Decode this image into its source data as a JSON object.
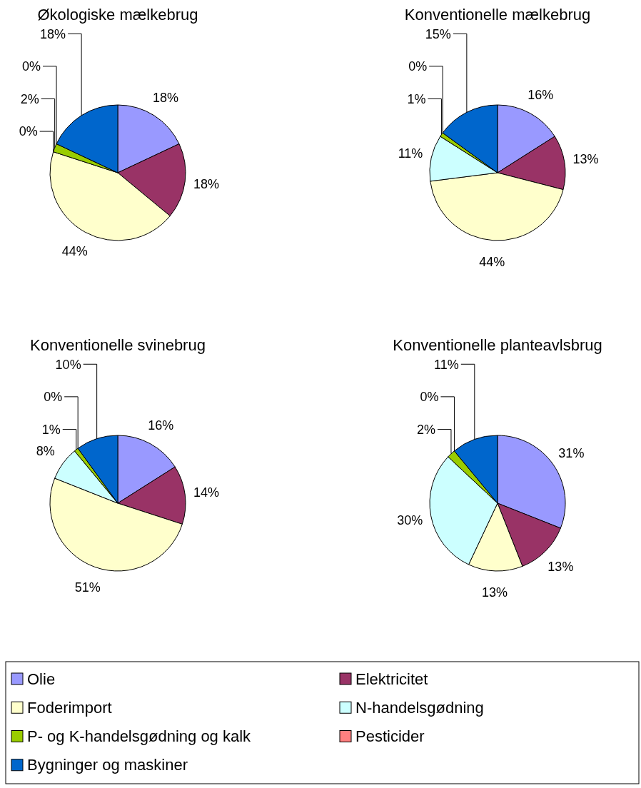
{
  "chart_data": [
    {
      "type": "pie",
      "title": "Økologiske mælkebrug",
      "categories": [
        "Olie",
        "Elektricitet",
        "Foderimport",
        "N-handelsgødning",
        "P- og K-handelsgødning og kalk",
        "Pesticider",
        "Bygninger og maskiner"
      ],
      "values": [
        18,
        18,
        44,
        0,
        2,
        0,
        18
      ],
      "value_labels": [
        "18%",
        "18%",
        "44%",
        "0%",
        "2%",
        "0%",
        "18%"
      ],
      "colors": [
        "#9999ff",
        "#993366",
        "#ffffcc",
        "#ccffff",
        "#99cc00",
        "#ff8080",
        "#0066cc"
      ],
      "legend": "bottom"
    },
    {
      "type": "pie",
      "title": "Konventionelle mælkebrug",
      "categories": [
        null,
        null,
        null,
        null,
        null,
        null,
        null
      ],
      "values": [
        16,
        13,
        44,
        11,
        1,
        0,
        15
      ],
      "value_labels": [
        "16%",
        "13%",
        "44%",
        "11%",
        "1%",
        "0%",
        "15%"
      ],
      "colors": [
        "#9999ff",
        "#993366",
        "#ffffcc",
        "#ccffff",
        "#99cc00",
        "#ff8080",
        "#0066cc"
      ]
    },
    {
      "type": "pie",
      "title": "Konventionelle svinebrug",
      "categories": [
        null,
        null,
        null,
        null,
        null,
        null,
        null
      ],
      "values": [
        16,
        14,
        51,
        8,
        1,
        0,
        10
      ],
      "value_labels": [
        "16%",
        "14%",
        "51%",
        "8%",
        "1%",
        "0%",
        "10%"
      ],
      "colors": [
        "#9999ff",
        "#993366",
        "#ffffcc",
        "#ccffff",
        "#99cc00",
        "#ff8080",
        "#0066cc"
      ]
    },
    {
      "type": "pie",
      "title": "Konventionelle planteavlsbrug",
      "categories": [
        null,
        null,
        null,
        null,
        null,
        null,
        null
      ],
      "values": [
        31,
        13,
        13,
        30,
        2,
        0,
        11
      ],
      "value_labels": [
        "31%",
        "13%",
        "13%",
        "30%",
        "2%",
        "0%",
        "11%"
      ],
      "colors": [
        "#9999ff",
        "#993366",
        "#ffffcc",
        "#ccffff",
        "#99cc00",
        "#ff8080",
        "#0066cc"
      ]
    }
  ]
}
